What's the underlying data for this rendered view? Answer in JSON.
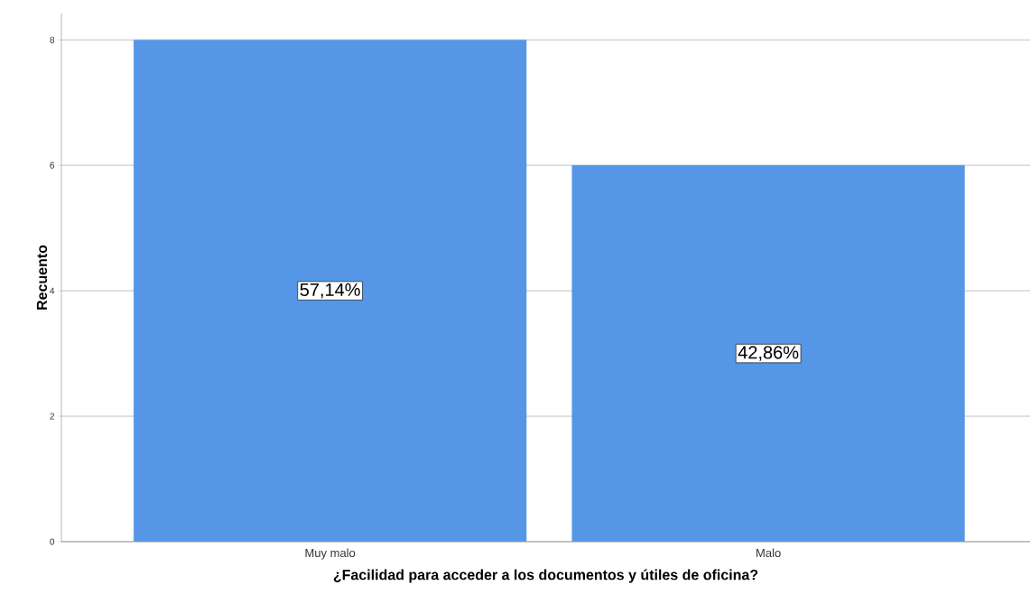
{
  "chart_data": {
    "type": "bar",
    "xlabel": "¿Facilidad para acceder a los documentos y útiles de oficina?",
    "ylabel": "Recuento",
    "categories": [
      "Muy malo",
      "Malo"
    ],
    "values": [
      8,
      6
    ],
    "color": "#5596e6",
    "ylim": [
      0,
      8.42
    ],
    "yticks": [
      0,
      2,
      4,
      6,
      8
    ],
    "grid": "y",
    "annotations": [
      "57,14%",
      "42,86%"
    ]
  }
}
